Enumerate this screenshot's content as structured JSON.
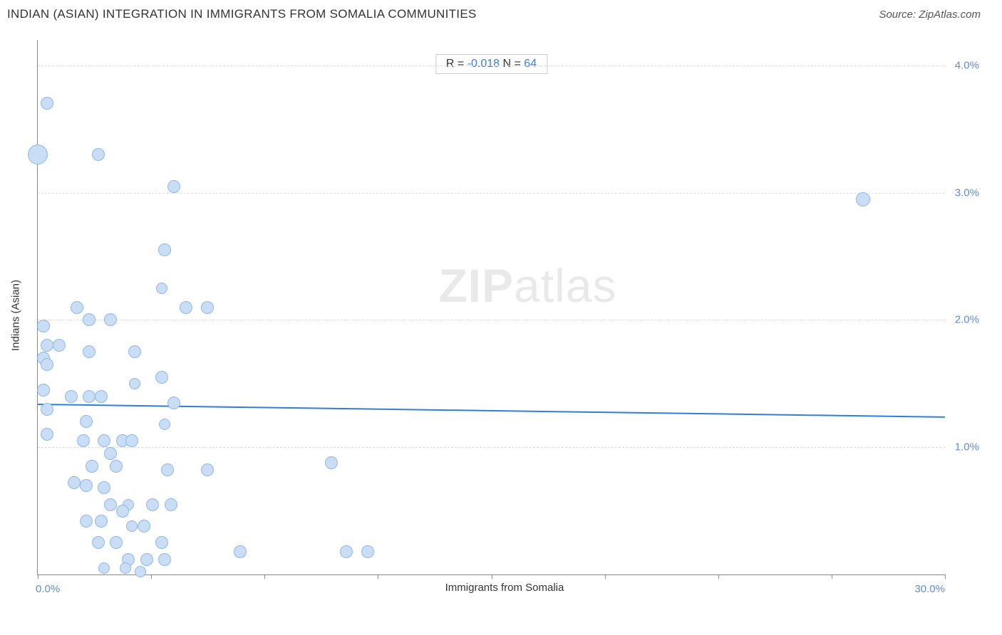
{
  "header": {
    "title": "INDIAN (ASIAN) INTEGRATION IN IMMIGRANTS FROM SOMALIA COMMUNITIES",
    "source": "Source: ZipAtlas.com"
  },
  "stats": {
    "r_label": "R = ",
    "r_value": "-0.018",
    "n_label": "   N = ",
    "n_value": "64"
  },
  "axes": {
    "x_label": "Immigrants from Somalia",
    "y_label": "Indians (Asian)",
    "x_min": 0.0,
    "x_max": 30.0,
    "x_min_label": "0.0%",
    "x_max_label": "30.0%",
    "y_min": 0.0,
    "y_max": 4.2,
    "y_ticks": [
      1.0,
      2.0,
      3.0,
      4.0
    ],
    "y_tick_labels": [
      "1.0%",
      "2.0%",
      "3.0%",
      "4.0%"
    ],
    "x_tick_positions": [
      0,
      3.75,
      7.5,
      11.25,
      15.0,
      18.75,
      22.5,
      26.25,
      30.0
    ]
  },
  "styling": {
    "point_fill": "#c9ddf5",
    "point_stroke": "#8fb7e6",
    "point_radius": 9,
    "trendline_color": "#2f7ed8",
    "trendline_width": 2,
    "grid_color": "#dddddd",
    "axis_color": "#888888",
    "tick_label_color": "#5b8dd6",
    "background": "#ffffff"
  },
  "trendline": {
    "y_at_xmin": 1.34,
    "y_at_xmax": 1.24
  },
  "watermark": "ZIPatlas",
  "points": [
    {
      "x": 0.3,
      "y": 3.7,
      "r": 9
    },
    {
      "x": 0.0,
      "y": 3.3,
      "r": 14
    },
    {
      "x": 2.0,
      "y": 3.3,
      "r": 9
    },
    {
      "x": 4.5,
      "y": 3.05,
      "r": 9
    },
    {
      "x": 27.3,
      "y": 2.95,
      "r": 10
    },
    {
      "x": 4.2,
      "y": 2.55,
      "r": 9
    },
    {
      "x": 4.1,
      "y": 2.25,
      "r": 8
    },
    {
      "x": 1.3,
      "y": 2.1,
      "r": 9
    },
    {
      "x": 4.9,
      "y": 2.1,
      "r": 9
    },
    {
      "x": 5.6,
      "y": 2.1,
      "r": 9
    },
    {
      "x": 0.2,
      "y": 1.95,
      "r": 9
    },
    {
      "x": 1.7,
      "y": 2.0,
      "r": 9
    },
    {
      "x": 2.4,
      "y": 2.0,
      "r": 9
    },
    {
      "x": 0.3,
      "y": 1.8,
      "r": 9
    },
    {
      "x": 0.7,
      "y": 1.8,
      "r": 9
    },
    {
      "x": 1.7,
      "y": 1.75,
      "r": 9
    },
    {
      "x": 3.2,
      "y": 1.75,
      "r": 9
    },
    {
      "x": 0.2,
      "y": 1.7,
      "r": 9
    },
    {
      "x": 0.3,
      "y": 1.65,
      "r": 9
    },
    {
      "x": 3.2,
      "y": 1.5,
      "r": 8
    },
    {
      "x": 4.1,
      "y": 1.55,
      "r": 9
    },
    {
      "x": 0.2,
      "y": 1.45,
      "r": 9
    },
    {
      "x": 1.1,
      "y": 1.4,
      "r": 9
    },
    {
      "x": 1.7,
      "y": 1.4,
      "r": 9
    },
    {
      "x": 2.1,
      "y": 1.4,
      "r": 9
    },
    {
      "x": 0.3,
      "y": 1.3,
      "r": 9
    },
    {
      "x": 4.5,
      "y": 1.35,
      "r": 9
    },
    {
      "x": 1.6,
      "y": 1.2,
      "r": 9
    },
    {
      "x": 4.2,
      "y": 1.18,
      "r": 8
    },
    {
      "x": 0.3,
      "y": 1.1,
      "r": 9
    },
    {
      "x": 1.5,
      "y": 1.05,
      "r": 9
    },
    {
      "x": 2.2,
      "y": 1.05,
      "r": 9
    },
    {
      "x": 2.8,
      "y": 1.05,
      "r": 9
    },
    {
      "x": 3.1,
      "y": 1.05,
      "r": 9
    },
    {
      "x": 2.4,
      "y": 0.95,
      "r": 9
    },
    {
      "x": 1.8,
      "y": 0.85,
      "r": 9
    },
    {
      "x": 2.6,
      "y": 0.85,
      "r": 9
    },
    {
      "x": 4.3,
      "y": 0.82,
      "r": 9
    },
    {
      "x": 5.6,
      "y": 0.82,
      "r": 9
    },
    {
      "x": 9.7,
      "y": 0.88,
      "r": 9
    },
    {
      "x": 1.2,
      "y": 0.72,
      "r": 9
    },
    {
      "x": 1.6,
      "y": 0.7,
      "r": 9
    },
    {
      "x": 2.2,
      "y": 0.68,
      "r": 9
    },
    {
      "x": 2.4,
      "y": 0.55,
      "r": 9
    },
    {
      "x": 3.0,
      "y": 0.55,
      "r": 8
    },
    {
      "x": 3.8,
      "y": 0.55,
      "r": 9
    },
    {
      "x": 4.4,
      "y": 0.55,
      "r": 9
    },
    {
      "x": 1.6,
      "y": 0.42,
      "r": 9
    },
    {
      "x": 2.1,
      "y": 0.42,
      "r": 9
    },
    {
      "x": 2.8,
      "y": 0.5,
      "r": 9
    },
    {
      "x": 3.1,
      "y": 0.38,
      "r": 8
    },
    {
      "x": 3.5,
      "y": 0.38,
      "r": 9
    },
    {
      "x": 2.0,
      "y": 0.25,
      "r": 9
    },
    {
      "x": 2.6,
      "y": 0.25,
      "r": 9
    },
    {
      "x": 4.1,
      "y": 0.25,
      "r": 9
    },
    {
      "x": 3.0,
      "y": 0.12,
      "r": 9
    },
    {
      "x": 3.6,
      "y": 0.12,
      "r": 9
    },
    {
      "x": 4.2,
      "y": 0.12,
      "r": 9
    },
    {
      "x": 6.7,
      "y": 0.18,
      "r": 9
    },
    {
      "x": 10.2,
      "y": 0.18,
      "r": 9
    },
    {
      "x": 10.9,
      "y": 0.18,
      "r": 9
    },
    {
      "x": 2.2,
      "y": 0.05,
      "r": 8
    },
    {
      "x": 2.9,
      "y": 0.05,
      "r": 8
    },
    {
      "x": 3.4,
      "y": 0.02,
      "r": 8
    }
  ]
}
